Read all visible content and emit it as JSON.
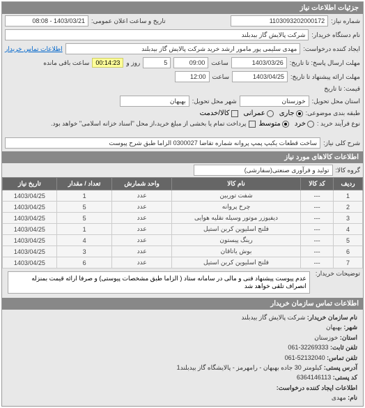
{
  "header": {
    "title": "جزئیات اطلاعات نیاز"
  },
  "request": {
    "number_label": "شماره نیاز:",
    "number": "1103093202000172",
    "announce_label": "تاریخ و ساعت اعلان عمومی:",
    "announce": "1403/03/21 - 08:08",
    "buyer_label": "نام دستگاه خریدار:",
    "buyer": "شرکت پالایش گاز بیدبلند",
    "requester_label": "ایجاد کننده درخواست:",
    "requester": "مهدی سلیمی پور مامور ارشد خرید شرکت پالایش گاز بیدبلند",
    "contact_link": "اطلاعات تماس خریدار",
    "deadline_send_label": "مهلت ارسال پاسخ: تا تاریخ:",
    "deadline_send_date": "1403/03/26",
    "deadline_send_time_label": "ساعت",
    "deadline_send_time": "09:00",
    "remain_days": "5",
    "remain_days_label": "روز و",
    "remain_time": "00:14:23",
    "remain_suffix": "ساعت باقی مانده",
    "deadline_offer_label": "مهلت ارائه پیشنهاد تا تاریخ:",
    "deadline_offer_date": "1403/04/25",
    "deadline_offer_time_label": "ساعت",
    "deadline_offer_time": "12:00",
    "price_label": "قیمت: تا تاریخ",
    "province_label": "استان محل تحویل:",
    "province": "خوزستان",
    "city_label": "شهر محل تحویل:",
    "city": "بهبهان",
    "budget_label": "طبقه بندی موضوعی:",
    "budget_opt1": "جاری",
    "budget_opt2": "عمرانی",
    "budget_opt3": "کالا/خدمت",
    "purchase_label": "نوع فرآیند خرید :",
    "purchase_opt1": "خرد",
    "purchase_opt2": "متوسط",
    "note": "پرداخت تمام یا بخشی از مبلغ خرید،از محل \"اسناد خزانه اسلامی\" خواهد بود.",
    "desc_label": "شرح کلی نیاز:",
    "desc": "ساخت قطعات یکبپ پمپ پروانه شماره تقاضا 0300027 الزاما طبق شرح پیوست"
  },
  "goods": {
    "title": "اطلاعات کالاهای مورد نیاز",
    "group_label": "گروه کالا:",
    "group": "تولید و فرآوری صنعتی(سفارشی)",
    "columns": [
      "ردیف",
      "کد کالا",
      "نام کالا",
      "واحد شمارش",
      "تعداد / مقدار",
      "تاریخ نیاز"
    ],
    "rows": [
      [
        "1",
        "---",
        "شفت توربین",
        "عدد",
        "1",
        "1403/04/25"
      ],
      [
        "2",
        "---",
        "چرخ پروانه",
        "عدد",
        "5",
        "1403/04/25"
      ],
      [
        "3",
        "---",
        "دیفیوزر موتور وسیله نقلیه هوایی",
        "عدد",
        "5",
        "1403/04/25"
      ],
      [
        "4",
        "---",
        "فلنج اسلیوین کربن استیل",
        "عدد",
        "1",
        "1403/04/25"
      ],
      [
        "5",
        "---",
        "رینگ پیستون",
        "عدد",
        "4",
        "1403/04/25"
      ],
      [
        "6",
        "---",
        "بوش یاتاقان",
        "عدد",
        "3",
        "1403/04/25"
      ],
      [
        "7",
        "---",
        "فلنج اسلیوین کربن استیل",
        "عدد",
        "6",
        "1403/04/25"
      ]
    ],
    "buyer_note_label": "توضیحات خریدار:",
    "buyer_note": "عدم پیوست پیشنهاد فنی و مالی در سامانه ستاد ( الزاما طبق مشخصات پیوستی) و صرفا ارائه قیمت بمنزله انصراف تلقی خواهد شد"
  },
  "contact": {
    "title": "اطلاعات تماس سازمان خریدار",
    "org_label": "نام سازمان خریدار:",
    "org": "شرکت پالایش گاز بیدبلند",
    "city_label": "شهر:",
    "city": "بهبهان",
    "province_label": "استان:",
    "province": "خوزستان",
    "phone_label": "تلفن ثابت:",
    "phone": "32269333-061",
    "fax_label": "تلفن تماس:",
    "fax": "52132040-061",
    "address_label": "آدرس پستی:",
    "address": "کیلومتر 30 جاده بهبهان - رامهرمز - پالایشگاه گاز بیدبلند1",
    "postal_label": "کد پستی:",
    "postal": "6364146113",
    "creator_label": "اطلاعات ایجاد کننده درخواست:",
    "creator_name_label": "نام:",
    "creator_name": "مهدی"
  }
}
